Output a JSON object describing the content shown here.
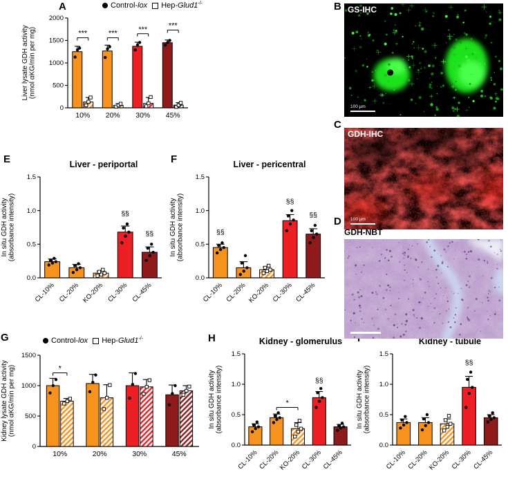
{
  "panels": [
    "A",
    "B",
    "C",
    "D",
    "E",
    "F",
    "G",
    "H",
    "I"
  ],
  "legend": {
    "items": [
      {
        "marker": "filled-circle",
        "prefix": "Control-",
        "italic": "lox",
        "sup": ""
      },
      {
        "marker": "open-square",
        "prefix": "Hep-",
        "italic": "Glud1",
        "sup": "-/-"
      }
    ]
  },
  "micrographs": {
    "B": {
      "title": "GS-IHC",
      "scale": "100 µm"
    },
    "C": {
      "title": "GDH-IHC",
      "scale": "100 µm"
    },
    "D": {
      "title": "GDH-NBT",
      "scale": ""
    }
  },
  "colors": {
    "orange": "#F6921E",
    "red": "#EC2024",
    "dark_red": "#8E1A1C",
    "green_fluorescence": "#2BE82B",
    "red_fluorescence": "#C00808",
    "histology_purple": "#B89CC8"
  },
  "chart_data": [
    {
      "panel": "A",
      "type": "bar",
      "title": "",
      "ylabel": [
        "Liver lysate GDH activity",
        "(nmol αKG/min per mg)"
      ],
      "ylim": [
        0,
        2000
      ],
      "yticks": [
        0,
        500,
        1000,
        1500,
        2000
      ],
      "categories": [
        "10%",
        "20%",
        "30%",
        "45%"
      ],
      "xrotate": false,
      "series": [
        {
          "name": "Control-lox",
          "marker": "dot",
          "hatch": false,
          "colors": [
            "#F6921E",
            "#F6921E",
            "#EC2024",
            "#8E1A1C"
          ],
          "values": [
            1250,
            1265,
            1370,
            1450
          ],
          "errors": [
            120,
            130,
            90,
            60
          ],
          "points": [
            [
              1130,
              1290,
              1330
            ],
            [
              1120,
              1310,
              1360
            ],
            [
              1290,
              1400,
              1455
            ],
            [
              1395,
              1455,
              1500
            ]
          ]
        },
        {
          "name": "Hep-Glud1-/-",
          "marker": "square",
          "hatch": true,
          "colors": [
            "#F6921E",
            "#F6921E",
            "#EC2024",
            "#8E1A1C"
          ],
          "values": [
            130,
            55,
            100,
            60
          ],
          "errors": [
            100,
            40,
            130,
            55
          ],
          "points": [
            [
              55,
              135,
              230
            ],
            [
              25,
              55,
              90
            ],
            [
              35,
              100,
              240
            ],
            [
              20,
              60,
              110
            ]
          ]
        }
      ],
      "sig_brackets": [
        {
          "cat": 0,
          "label": "***",
          "y": 1560
        },
        {
          "cat": 1,
          "label": "***",
          "y": 1560
        },
        {
          "cat": 2,
          "label": "***",
          "y": 1650
        },
        {
          "cat": 3,
          "label": "***",
          "y": 1730
        }
      ]
    },
    {
      "panel": "E",
      "type": "bar",
      "title": "Liver - periportal",
      "ylabel": [
        "In situ GDH activity",
        "(absorbance intensity)"
      ],
      "ylim": [
        0,
        1.5
      ],
      "yticks": [
        0,
        0.5,
        1,
        1.5
      ],
      "categories": [
        "CL-10%",
        "CL-20%",
        "KO-20%",
        "CL-30%",
        "CL-45%"
      ],
      "xrotate": true,
      "bars": [
        {
          "value": 0.24,
          "error": 0.04,
          "color": "#F6921E",
          "hatch": false,
          "marker": "dot",
          "points": [
            0.19,
            0.22,
            0.24,
            0.26,
            0.29
          ]
        },
        {
          "value": 0.15,
          "error": 0.05,
          "color": "#F6921E",
          "hatch": false,
          "marker": "dot",
          "points": [
            0.08,
            0.12,
            0.15,
            0.18,
            0.21
          ]
        },
        {
          "value": 0.07,
          "error": 0.03,
          "color": "#F6921E",
          "hatch": true,
          "marker": "square",
          "points": [
            0.03,
            0.05,
            0.07,
            0.09,
            0.12
          ]
        },
        {
          "value": 0.68,
          "error": 0.09,
          "color": "#EC2024",
          "hatch": false,
          "marker": "dot",
          "points": [
            0.52,
            0.62,
            0.68,
            0.74,
            0.8
          ]
        },
        {
          "value": 0.38,
          "error": 0.08,
          "color": "#8E1A1C",
          "hatch": false,
          "marker": "dot",
          "points": [
            0.26,
            0.33,
            0.38,
            0.44,
            0.5
          ]
        }
      ],
      "annotations": [
        {
          "index": 3,
          "label": "§§",
          "y": 0.92
        },
        {
          "index": 4,
          "label": "§§",
          "y": 0.62
        }
      ],
      "sig_brackets": []
    },
    {
      "panel": "F",
      "type": "bar",
      "title": "Liver - pericentral",
      "ylabel": [
        "In situ GDH activity",
        "(absorbance intensity)"
      ],
      "ylim": [
        0,
        1.5
      ],
      "yticks": [
        0,
        0.5,
        1,
        1.5
      ],
      "categories": [
        "CL-10%",
        "CL-20%",
        "KO-20%",
        "CL-30%",
        "CL-45%"
      ],
      "xrotate": true,
      "bars": [
        {
          "value": 0.45,
          "error": 0.05,
          "color": "#F6921E",
          "hatch": false,
          "marker": "dot",
          "points": [
            0.37,
            0.42,
            0.45,
            0.48,
            0.52
          ]
        },
        {
          "value": 0.15,
          "error": 0.09,
          "color": "#F6921E",
          "hatch": false,
          "marker": "dot",
          "points": [
            0.05,
            0.1,
            0.15,
            0.22,
            0.33
          ]
        },
        {
          "value": 0.12,
          "error": 0.04,
          "color": "#F6921E",
          "hatch": true,
          "marker": "square",
          "points": [
            0.07,
            0.1,
            0.12,
            0.15,
            0.18
          ]
        },
        {
          "value": 0.85,
          "error": 0.09,
          "color": "#EC2024",
          "hatch": false,
          "marker": "dot",
          "points": [
            0.7,
            0.8,
            0.86,
            0.92,
            1.0
          ]
        },
        {
          "value": 0.65,
          "error": 0.08,
          "color": "#8E1A1C",
          "hatch": false,
          "marker": "dot",
          "points": [
            0.52,
            0.6,
            0.65,
            0.7,
            0.78
          ]
        }
      ],
      "annotations": [
        {
          "index": 0,
          "label": "§§",
          "y": 0.64
        },
        {
          "index": 3,
          "label": "§§",
          "y": 1.1
        },
        {
          "index": 4,
          "label": "§§",
          "y": 0.9
        }
      ],
      "sig_brackets": []
    },
    {
      "panel": "G",
      "type": "bar",
      "title": "",
      "ylabel": [
        "Kidney lysate GDH activity",
        "(nmol αKG/min per mg)"
      ],
      "ylim": [
        0,
        1500
      ],
      "yticks": [
        0,
        500,
        1000,
        1500
      ],
      "categories": [
        "10%",
        "20%",
        "30%",
        "45%"
      ],
      "xrotate": false,
      "series": [
        {
          "name": "Control-lox",
          "marker": "dot",
          "hatch": false,
          "colors": [
            "#F6921E",
            "#F6921E",
            "#EC2024",
            "#8E1A1C"
          ],
          "values": [
            1000,
            1035,
            1000,
            850
          ],
          "errors": [
            120,
            150,
            210,
            160
          ],
          "points": [
            [
              880,
              1000,
              1100
            ],
            [
              900,
              1055,
              1175
            ],
            [
              795,
              1020,
              1200
            ],
            [
              685,
              870,
              1000
            ]
          ]
        },
        {
          "name": "Hep-Glud1-/-",
          "marker": "square",
          "hatch": true,
          "colors": [
            "#F6921E",
            "#F6921E",
            "#EC2024",
            "#8E1A1C"
          ],
          "values": [
            745,
            800,
            980,
            915
          ],
          "errors": [
            45,
            215,
            120,
            85
          ],
          "points": [
            [
              705,
              745,
              785
            ],
            [
              615,
              800,
              1010
            ],
            [
              865,
              980,
              1090
            ],
            [
              850,
              915,
              985
            ]
          ]
        }
      ],
      "sig_brackets": [
        {
          "cat": 0,
          "label": "*",
          "y": 1210
        }
      ]
    },
    {
      "panel": "H",
      "type": "bar",
      "title": "Kidney - glomerulus",
      "ylabel": [
        "In situ GDH activity",
        "(absorbance intensity)"
      ],
      "ylim": [
        0,
        1.5
      ],
      "yticks": [
        0,
        0.5,
        1,
        1.5
      ],
      "categories": [
        "CL-10%",
        "CL-20%",
        "KO-20%",
        "CL-30%",
        "CL-45%"
      ],
      "xrotate": true,
      "bars": [
        {
          "value": 0.3,
          "error": 0.05,
          "color": "#F6921E",
          "hatch": false,
          "marker": "dot",
          "points": [
            0.22,
            0.27,
            0.3,
            0.33,
            0.38
          ]
        },
        {
          "value": 0.45,
          "error": 0.06,
          "color": "#F6921E",
          "hatch": false,
          "marker": "dot",
          "points": [
            0.37,
            0.42,
            0.45,
            0.48,
            0.53
          ]
        },
        {
          "value": 0.27,
          "error": 0.1,
          "color": "#F6921E",
          "hatch": true,
          "marker": "square",
          "points": [
            0.14,
            0.22,
            0.27,
            0.33,
            0.4
          ]
        },
        {
          "value": 0.78,
          "error": 0.1,
          "color": "#EC2024",
          "hatch": false,
          "marker": "dot",
          "points": [
            0.62,
            0.72,
            0.78,
            0.86,
            0.93
          ]
        },
        {
          "value": 0.3,
          "error": 0.04,
          "color": "#8E1A1C",
          "hatch": false,
          "marker": "dot",
          "points": [
            0.24,
            0.28,
            0.3,
            0.32,
            0.36
          ]
        }
      ],
      "annotations": [
        {
          "index": 3,
          "label": "§§",
          "y": 1.02
        }
      ],
      "sig_brackets": [
        {
          "from": 1,
          "to": 2,
          "label": "*",
          "y": 0.62
        }
      ]
    },
    {
      "panel": "I",
      "type": "bar",
      "title": "Kidney - tubule",
      "ylabel": [
        "In situ GDH activity",
        "(absorbance intensity)"
      ],
      "ylim": [
        0,
        1.5
      ],
      "yticks": [
        0,
        0.5,
        1,
        1.5
      ],
      "categories": [
        "CL-10%",
        "CL-20%",
        "KO-20%",
        "CL-30%",
        "CL-45%"
      ],
      "xrotate": true,
      "bars": [
        {
          "value": 0.37,
          "error": 0.06,
          "color": "#F6921E",
          "hatch": false,
          "marker": "dot",
          "points": [
            0.28,
            0.33,
            0.37,
            0.41,
            0.47
          ]
        },
        {
          "value": 0.37,
          "error": 0.08,
          "color": "#F6921E",
          "hatch": false,
          "marker": "dot",
          "points": [
            0.25,
            0.32,
            0.37,
            0.43,
            0.5
          ]
        },
        {
          "value": 0.35,
          "error": 0.08,
          "color": "#F6921E",
          "hatch": true,
          "marker": "square",
          "points": [
            0.24,
            0.3,
            0.35,
            0.41,
            0.48
          ]
        },
        {
          "value": 0.95,
          "error": 0.18,
          "color": "#EC2024",
          "hatch": false,
          "marker": "dot",
          "points": [
            0.62,
            0.85,
            0.95,
            1.08,
            1.2
          ]
        },
        {
          "value": 0.45,
          "error": 0.05,
          "color": "#8E1A1C",
          "hatch": false,
          "marker": "dot",
          "points": [
            0.38,
            0.42,
            0.45,
            0.48,
            0.53
          ]
        }
      ],
      "annotations": [
        {
          "index": 3,
          "label": "§§",
          "y": 1.32
        }
      ],
      "sig_brackets": []
    }
  ]
}
